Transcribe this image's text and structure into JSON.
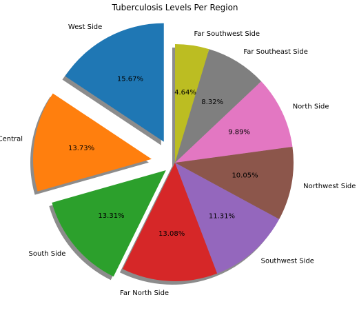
{
  "chart_data": {
    "type": "pie",
    "title": "Tuberculosis Levels Per Region",
    "slices": [
      {
        "label": "West Side",
        "percent": 15.67,
        "display": "15.67%",
        "color": "#1f77b4",
        "explode": 0.2
      },
      {
        "label": "Central",
        "percent": 13.73,
        "display": "13.73%",
        "color": "#ff7f0e",
        "explode": 0.2
      },
      {
        "label": "South Side",
        "percent": 13.31,
        "display": "13.31%",
        "color": "#2ca02c",
        "explode": 0.1
      },
      {
        "label": "Far North Side",
        "percent": 13.08,
        "display": "13.08%",
        "color": "#d62728",
        "explode": 0
      },
      {
        "label": "Southwest Side",
        "percent": 11.31,
        "display": "11.31%",
        "color": "#9467bd",
        "explode": 0
      },
      {
        "label": "Northwest Side",
        "percent": 10.05,
        "display": "10.05%",
        "color": "#8c564b",
        "explode": 0
      },
      {
        "label": "North Side",
        "percent": 9.89,
        "display": "9.89%",
        "color": "#e377c2",
        "explode": 0
      },
      {
        "label": "Far Southeast Side",
        "percent": 8.32,
        "display": "8.32%",
        "color": "#7f7f7f",
        "explode": 0
      },
      {
        "label": "Far Southwest Side",
        "percent": 4.64,
        "display": "4.64%",
        "color": "#bcbd22",
        "explode": 0
      }
    ],
    "start_angle_deg": 90,
    "direction": "counterclockwise",
    "shadow": true
  }
}
